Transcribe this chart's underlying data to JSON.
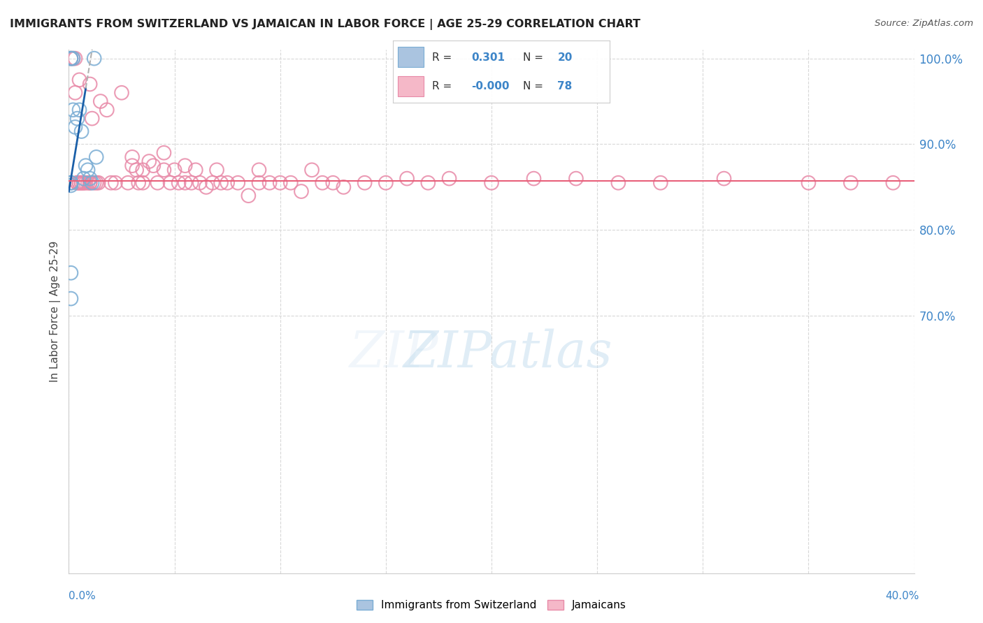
{
  "title": "IMMIGRANTS FROM SWITZERLAND VS JAMAICAN IN LABOR FORCE | AGE 25-29 CORRELATION CHART",
  "source": "Source: ZipAtlas.com",
  "ylabel": "In Labor Force | Age 25-29",
  "swiss_color": "#aac4e0",
  "swiss_edge_color": "#7aadd4",
  "jamaican_color": "#f5b8c8",
  "jamaican_edge_color": "#e88aa8",
  "trend_swiss_color": "#1a5fa8",
  "trend_jamaican_color": "#e8607a",
  "x_min": 0.0,
  "x_max": 0.4,
  "y_min": 0.4,
  "y_max": 1.01,
  "yticks": [
    0.7,
    0.8,
    0.9,
    1.0
  ],
  "ytick_labels": [
    "70.0%",
    "80.0%",
    "90.0%",
    "100.0%"
  ],
  "grid_color": "#d8d8d8",
  "legend_r1": "0.301",
  "legend_n1": "20",
  "legend_r2": "-0.000",
  "legend_n2": "78",
  "legend_label1": "Immigrants from Switzerland",
  "legend_label2": "Jamaicans",
  "watermark": "ZIPatlas",
  "swiss_x": [
    0.001,
    0.001,
    0.001,
    0.001,
    0.001,
    0.002,
    0.002,
    0.003,
    0.004,
    0.005,
    0.006,
    0.007,
    0.008,
    0.009,
    0.01,
    0.011,
    0.012,
    0.013,
    0.001,
    0.001
  ],
  "swiss_y": [
    1.0,
    1.0,
    0.855,
    0.852,
    0.855,
    0.94,
    1.0,
    0.92,
    0.93,
    0.94,
    0.915,
    0.86,
    0.875,
    0.87,
    0.86,
    0.855,
    1.0,
    0.885,
    0.75,
    0.72
  ],
  "jam_x": [
    0.001,
    0.002,
    0.003,
    0.003,
    0.004,
    0.004,
    0.005,
    0.005,
    0.005,
    0.006,
    0.006,
    0.007,
    0.007,
    0.008,
    0.009,
    0.01,
    0.01,
    0.01,
    0.011,
    0.012,
    0.013,
    0.014,
    0.015,
    0.018,
    0.02,
    0.022,
    0.025,
    0.028,
    0.03,
    0.03,
    0.032,
    0.033,
    0.035,
    0.035,
    0.038,
    0.04,
    0.042,
    0.045,
    0.045,
    0.048,
    0.05,
    0.052,
    0.055,
    0.055,
    0.058,
    0.06,
    0.062,
    0.065,
    0.068,
    0.07,
    0.072,
    0.075,
    0.08,
    0.085,
    0.09,
    0.09,
    0.095,
    0.1,
    0.105,
    0.11,
    0.115,
    0.12,
    0.125,
    0.13,
    0.14,
    0.15,
    0.16,
    0.17,
    0.18,
    0.2,
    0.22,
    0.24,
    0.26,
    0.28,
    0.31,
    0.35,
    0.37,
    0.39
  ],
  "jam_y": [
    1.0,
    1.0,
    1.0,
    0.96,
    0.855,
    0.855,
    0.975,
    0.855,
    0.855,
    0.855,
    0.855,
    0.855,
    0.855,
    0.855,
    0.855,
    0.97,
    0.855,
    0.855,
    0.93,
    0.855,
    0.855,
    0.855,
    0.95,
    0.94,
    0.855,
    0.855,
    0.96,
    0.855,
    0.885,
    0.875,
    0.87,
    0.855,
    0.87,
    0.855,
    0.88,
    0.875,
    0.855,
    0.89,
    0.87,
    0.855,
    0.87,
    0.855,
    0.875,
    0.855,
    0.855,
    0.87,
    0.855,
    0.85,
    0.855,
    0.87,
    0.855,
    0.855,
    0.855,
    0.84,
    0.87,
    0.855,
    0.855,
    0.855,
    0.855,
    0.845,
    0.87,
    0.855,
    0.855,
    0.85,
    0.855,
    0.855,
    0.86,
    0.855,
    0.86,
    0.855,
    0.86,
    0.86,
    0.855,
    0.855,
    0.86,
    0.855,
    0.855,
    0.855
  ]
}
